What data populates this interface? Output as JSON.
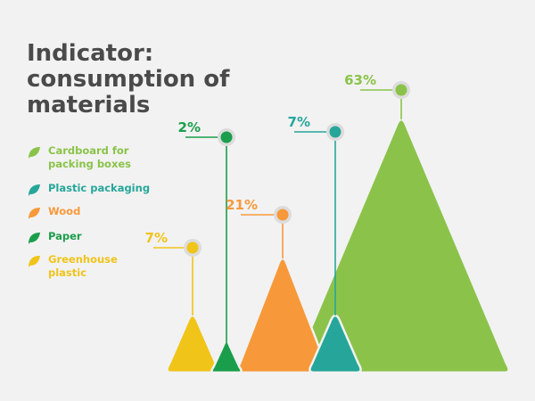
{
  "title": "Indicator: consumption of materials",
  "colors": {
    "cardboard": "#8bc34a",
    "plastic_packaging": "#26a69a",
    "wood": "#f7993a",
    "paper": "#1b9e4b",
    "greenhouse_plastic": "#f0c419",
    "background": "#f2f2f2"
  },
  "legend": [
    {
      "label": "Cardboard for packing boxes",
      "color": "#8bc34a",
      "icon": "leaf-icon"
    },
    {
      "label": "Plastic packaging",
      "color": "#26a69a",
      "icon": "leaf-icon"
    },
    {
      "label": "Wood",
      "color": "#f7993a",
      "icon": "leaf-icon"
    },
    {
      "label": "Paper",
      "color": "#1b9e4b",
      "icon": "leaf-icon"
    },
    {
      "label": "Greenhouse plastic",
      "color": "#f0c419",
      "icon": "leaf-icon"
    }
  ],
  "chart_data": {
    "type": "bar",
    "title": "Indicator: consumption of materials",
    "categories": [
      "Greenhouse plastic",
      "Paper",
      "Wood",
      "Plastic packaging",
      "Cardboard for packing boxes"
    ],
    "values": [
      7,
      2,
      21,
      7,
      63
    ],
    "value_labels": [
      "7%",
      "2%",
      "21%",
      "7%",
      "63%"
    ],
    "unit": "%",
    "ylim": [
      0,
      63
    ],
    "grid": false,
    "legend_position": "left"
  }
}
